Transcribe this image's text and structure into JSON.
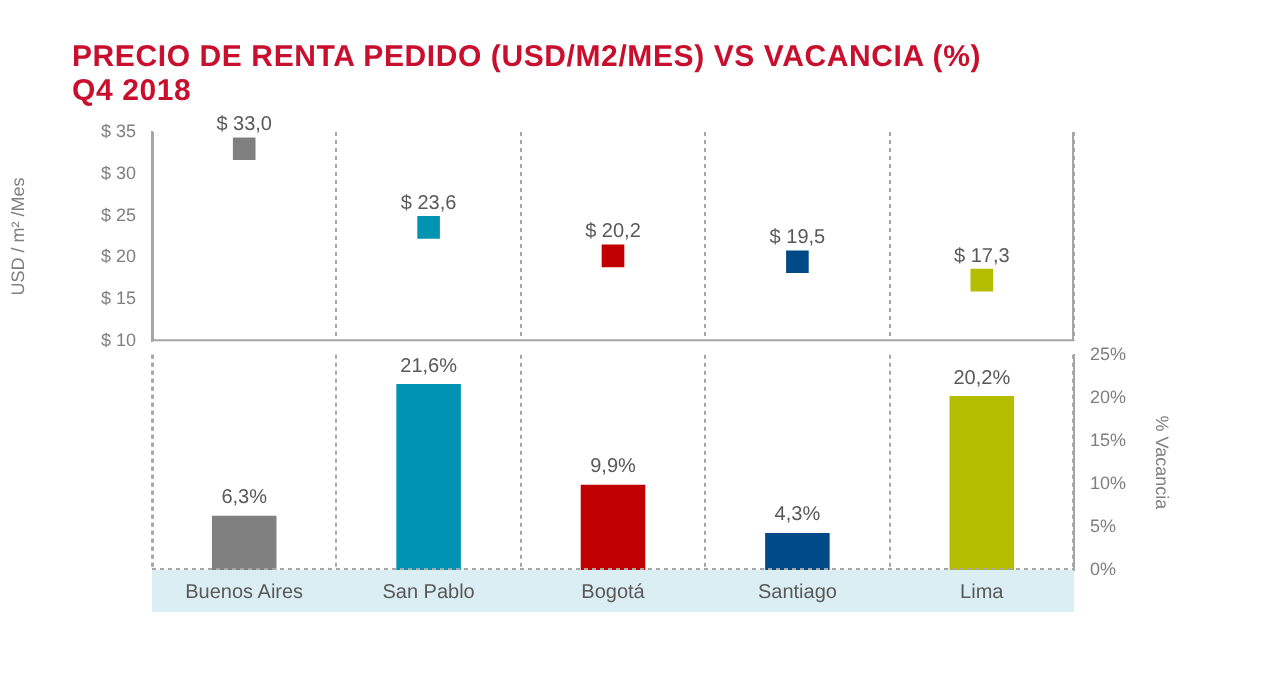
{
  "chart_data": [
    {
      "type": "scatter",
      "title": "PRECIO DE RENTA PEDIDO (USD/M2/MES) VS VACANCIA (%)",
      "subtitle": "Q4 2018",
      "ylabel": "USD / m² /Mes",
      "categories": [
        null,
        null,
        null,
        null,
        null
      ],
      "values": [
        33.0,
        23.6,
        20.2,
        19.5,
        17.3
      ],
      "colors": [
        "#808080",
        "#0093b2",
        "#c00000",
        "#004b87",
        "#b5bd00"
      ],
      "value_labels": [
        "$ 33,0",
        "$ 23,6",
        "$ 20,2",
        "$ 19,5",
        "$ 17,3"
      ],
      "ylim": [
        10,
        35
      ],
      "yticks": [
        {
          "value": 10,
          "label": "$ 10"
        },
        {
          "value": 15,
          "label": "$ 15"
        },
        {
          "value": 20,
          "label": "$ 20"
        },
        {
          "value": 25,
          "label": "$ 25"
        },
        {
          "value": 30,
          "label": "$ 30"
        },
        {
          "value": 35,
          "label": "$ 35"
        }
      ],
      "tick_labels": "y",
      "grid": "x",
      "marker": "square"
    },
    {
      "type": "bar",
      "y2label": "% Vacancia",
      "categories": [
        "Buenos Aires",
        "San Pablo",
        "Bogotá",
        "Santiago",
        "Lima"
      ],
      "series": [
        {
          "axis": "y2",
          "values": [
            6.3,
            21.6,
            9.9,
            4.3,
            20.2
          ],
          "colors": [
            "#808080",
            "#0093b2",
            "#c00000",
            "#004b87",
            "#b5bd00"
          ],
          "value_labels": [
            "6,3%",
            "21,6%",
            "9,9%",
            "4,3%",
            "20,2%"
          ]
        }
      ],
      "y2lim": [
        0,
        25
      ],
      "y2ticks": [
        {
          "value": 0,
          "label": "0%"
        },
        {
          "value": 5,
          "label": "5%"
        },
        {
          "value": 10,
          "label": "10%"
        },
        {
          "value": 15,
          "label": "15%"
        },
        {
          "value": 20,
          "label": "20%"
        },
        {
          "value": 25,
          "label": "25%"
        }
      ],
      "grid": "x"
    }
  ]
}
